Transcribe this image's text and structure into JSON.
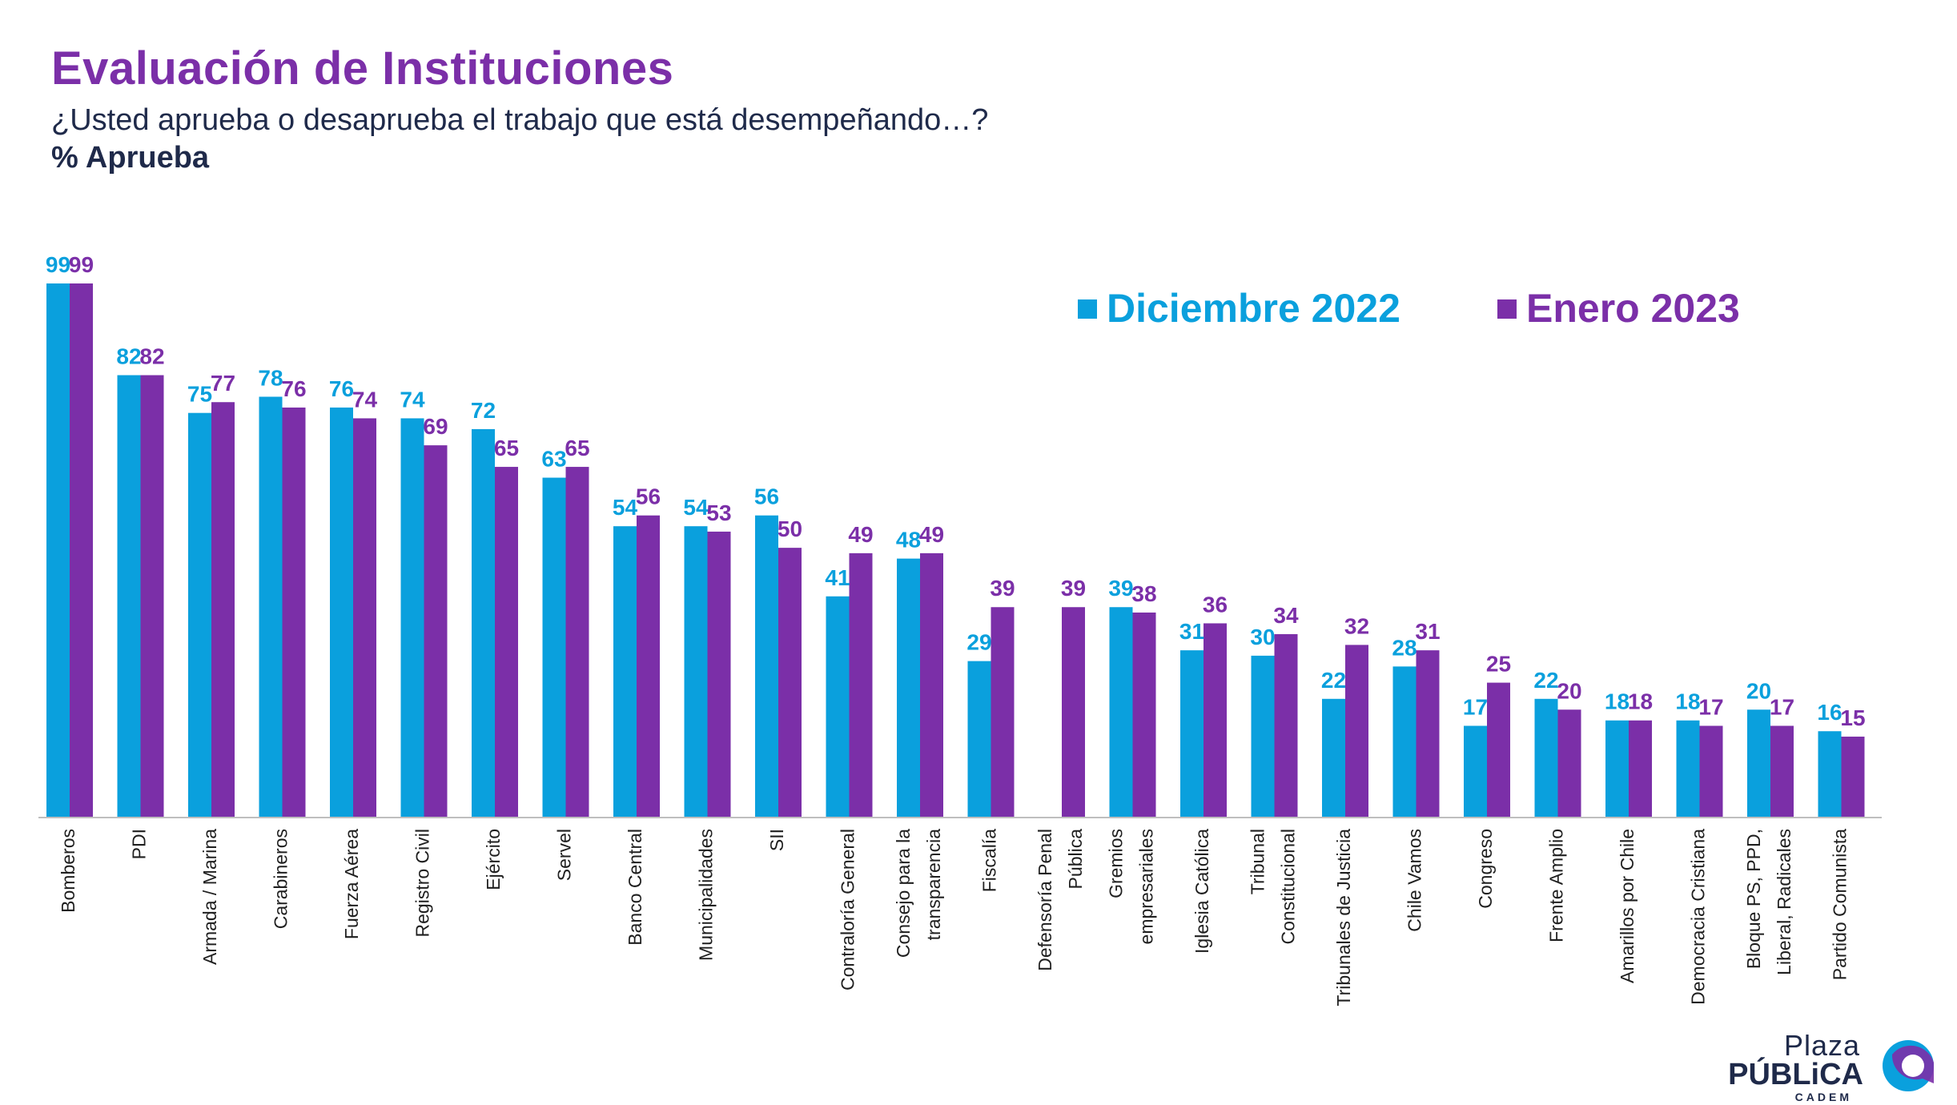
{
  "header": {
    "title": "Evaluación de Instituciones",
    "subtitle": "¿Usted aprueba o desaprueba el trabajo que está desempeñando…?",
    "measure": "% Aprueba"
  },
  "colors": {
    "dic": "#0aa0dd",
    "ene": "#7b2fa8",
    "title": "#7b2fa8",
    "text": "#1f2a4a"
  },
  "logo": {
    "line1": "Plaza",
    "line2": "PÚBLiCA",
    "line3": "CADEM"
  },
  "chart_data": {
    "type": "bar",
    "ylim": [
      0,
      100
    ],
    "grid": false,
    "legend_position": "top-right",
    "categories": [
      [
        "Bomberos"
      ],
      [
        "PDI"
      ],
      [
        "Armada / Marina"
      ],
      [
        "Carabineros"
      ],
      [
        "Fuerza Aérea"
      ],
      [
        "Registro Civil"
      ],
      [
        "Ejército"
      ],
      [
        "Servel"
      ],
      [
        "Banco Central"
      ],
      [
        "Municipalidades"
      ],
      [
        "SII"
      ],
      [
        "Contraloría General"
      ],
      [
        "Consejo para la",
        "transparencia"
      ],
      [
        "Fiscalía"
      ],
      [
        "Defensoría Penal",
        "Pública"
      ],
      [
        "Gremios",
        "empresariales"
      ],
      [
        "Iglesia Católica"
      ],
      [
        "Tribunal",
        "Constitucional"
      ],
      [
        "Tribunales de Justicia"
      ],
      [
        "Chile Vamos"
      ],
      [
        "Congreso"
      ],
      [
        "Frente Amplio"
      ],
      [
        "Amarillos por Chile"
      ],
      [
        "Democracia Cristiana"
      ],
      [
        "Bloque PS, PPD,",
        "Liberal, Radicales"
      ],
      [
        "Partido Comunista"
      ]
    ],
    "series": [
      {
        "name": "Diciembre 2022",
        "values": [
          99,
          82,
          75,
          78,
          76,
          74,
          72,
          63,
          54,
          54,
          56,
          41,
          48,
          29,
          null,
          39,
          31,
          30,
          22,
          28,
          17,
          22,
          18,
          18,
          20,
          16
        ]
      },
      {
        "name": "Enero 2023",
        "values": [
          99,
          82,
          77,
          76,
          74,
          69,
          65,
          65,
          56,
          53,
          50,
          49,
          49,
          39,
          39,
          38,
          36,
          34,
          32,
          31,
          25,
          20,
          18,
          17,
          17,
          15
        ]
      }
    ]
  }
}
